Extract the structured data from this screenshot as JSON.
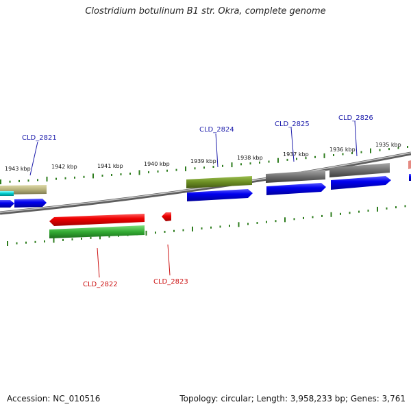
{
  "title": "Clostridium botulinum B1 str. Okra, complete genome",
  "footer": {
    "accession": "Accession: NC_010516",
    "stats": "Topology: circular; Length: 3,958,233 bp; Genes: 3,761"
  },
  "ticks": [
    "1943 kbp",
    "1942 kbp",
    "1941 kbp",
    "1940 kbp",
    "1939 kbp",
    "1938 kbp",
    "1937 kbp",
    "1936 kbp",
    "1935 kbp"
  ],
  "genes_forward": [
    "CLD_2821",
    "CLD_2824",
    "CLD_2825",
    "CLD_2826"
  ],
  "genes_reverse": [
    "CLD_2822",
    "CLD_2823"
  ],
  "colors": {
    "forward_gene": "#0000ee",
    "reverse_gene": "#ee0000",
    "forward_label": "#1a1aaa",
    "reverse_label": "#cc1111",
    "tick": "#2e7d1e",
    "backbone": "#8a8a8a",
    "feature_olive": "#6b8e23",
    "feature_gray": "#707070",
    "feature_green": "#33aa33",
    "feature_tan": "#b5b07a",
    "feature_cyan": "#00cccc"
  }
}
